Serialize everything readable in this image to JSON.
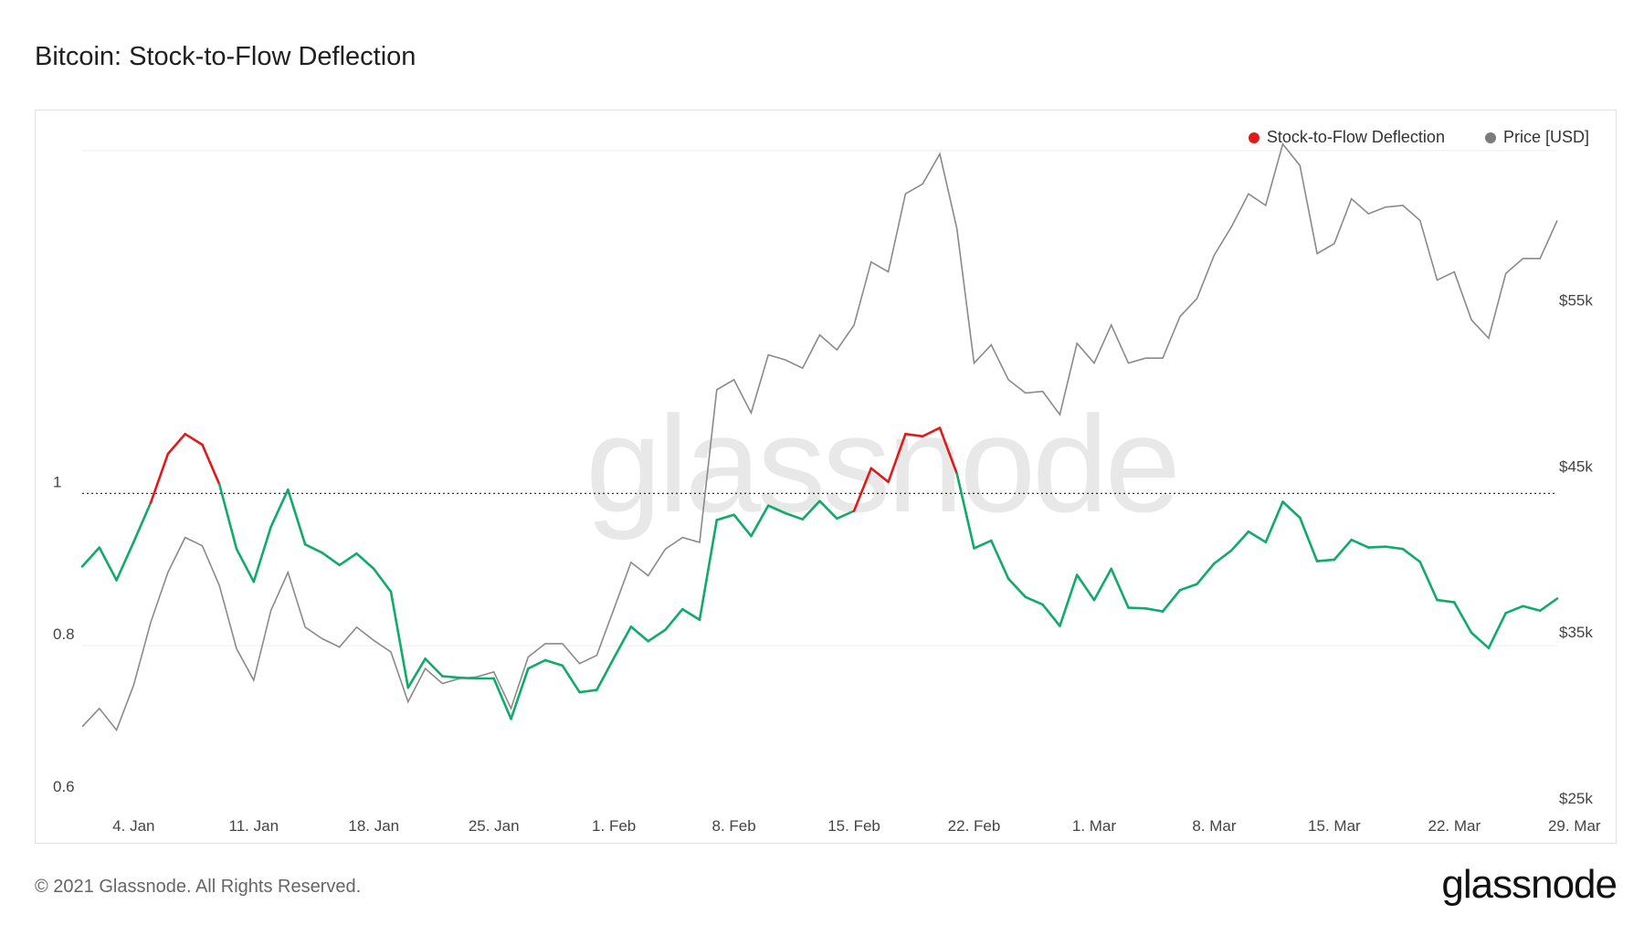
{
  "title": "Bitcoin: Stock-to-Flow Deflection",
  "footer": "© 2021 Glassnode. All Rights Reserved.",
  "logo": "glassnode",
  "watermark": "glassnode",
  "colors": {
    "above": "#e2191b",
    "below": "#10aa6a",
    "price": "#8a8a8a",
    "legend_price": "#7b7b7b"
  },
  "chart_data": {
    "type": "line",
    "x_start": "2021-01-01",
    "x_ticks": [
      "4. Jan",
      "11. Jan",
      "18. Jan",
      "25. Jan",
      "1. Feb",
      "8. Feb",
      "15. Feb",
      "22. Feb",
      "1. Mar",
      "8. Mar",
      "15. Mar",
      "22. Mar",
      "29. Mar"
    ],
    "y_left": {
      "ticks": [
        "0.6",
        "0.8",
        "1"
      ],
      "range": [
        0.6,
        1.45
      ]
    },
    "y_right": {
      "ticks": [
        "$25k",
        "$35k",
        "$45k",
        "$55k"
      ],
      "range": [
        25000,
        64000
      ]
    },
    "reference_line": 1,
    "legend": [
      {
        "label": "Stock-to-Flow Deflection",
        "color": "#e2191b"
      },
      {
        "label": "Price [USD]",
        "color": "#7b7b7b"
      }
    ],
    "series": [
      {
        "name": "Stock-to-Flow Deflection",
        "axis": "left",
        "values": [
          0.904,
          0.929,
          0.886,
          0.936,
          0.988,
          1.052,
          1.078,
          1.064,
          1.012,
          0.927,
          0.884,
          0.956,
          1.005,
          0.933,
          0.922,
          0.906,
          0.921,
          0.901,
          0.871,
          0.745,
          0.783,
          0.76,
          0.758,
          0.757,
          0.757,
          0.704,
          0.77,
          0.781,
          0.774,
          0.739,
          0.742,
          0.784,
          0.825,
          0.806,
          0.821,
          0.848,
          0.834,
          0.965,
          0.972,
          0.944,
          0.984,
          0.974,
          0.966,
          0.99,
          0.967,
          0.977,
          1.033,
          1.015,
          1.078,
          1.075,
          1.086,
          1.026,
          0.928,
          0.938,
          0.888,
          0.864,
          0.854,
          0.826,
          0.893,
          0.86,
          0.901,
          0.85,
          0.849,
          0.845,
          0.873,
          0.881,
          0.908,
          0.925,
          0.95,
          0.936,
          0.989,
          0.968,
          0.911,
          0.913,
          0.939,
          0.929,
          0.93,
          0.927,
          0.91,
          0.86,
          0.857,
          0.817,
          0.797,
          0.843,
          0.852,
          0.846,
          0.862
        ]
      },
      {
        "name": "Price [USD]",
        "axis": "right",
        "values": [
          29300,
          30400,
          29100,
          31800,
          35600,
          38600,
          40700,
          40200,
          37800,
          34000,
          32100,
          36300,
          38600,
          35300,
          34600,
          34100,
          35300,
          34500,
          33800,
          30800,
          32800,
          31900,
          32200,
          32300,
          32600,
          30400,
          33500,
          34300,
          34300,
          33100,
          33600,
          36400,
          39200,
          38400,
          40000,
          40700,
          40400,
          49600,
          50200,
          48200,
          51700,
          51400,
          50900,
          52900,
          52000,
          53500,
          57300,
          56700,
          61400,
          62000,
          63800,
          59300,
          51200,
          52300,
          50200,
          49400,
          49500,
          48100,
          52400,
          51200,
          53500,
          51200,
          51500,
          51500,
          54000,
          55100,
          57700,
          59400,
          61400,
          60700,
          64400,
          63100,
          57800,
          58400,
          61100,
          60200,
          60600,
          60700,
          59800,
          56200,
          56700,
          53800,
          52700,
          56600,
          57500,
          57500,
          59800
        ]
      }
    ]
  }
}
